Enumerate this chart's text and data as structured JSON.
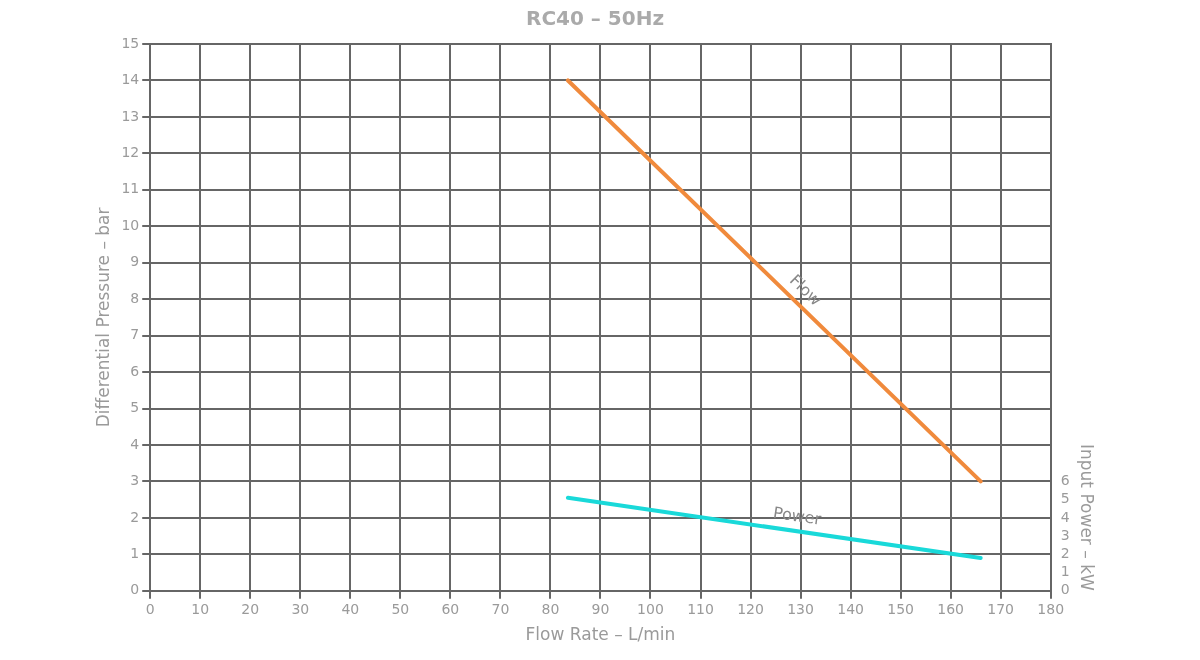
{
  "chart_data": {
    "type": "line",
    "title": "RC40 – 50Hz",
    "xlabel": "Flow Rate – L/min",
    "ylabel": "Differential Pressure – bar",
    "y2label": "Input Power – kW",
    "xlim": [
      0,
      180
    ],
    "xticks": [
      0,
      10,
      20,
      30,
      40,
      50,
      60,
      70,
      80,
      90,
      100,
      110,
      120,
      130,
      140,
      150,
      160,
      170,
      180
    ],
    "ylim": [
      0,
      15
    ],
    "yticks": [
      0,
      1,
      2,
      3,
      4,
      5,
      6,
      7,
      8,
      9,
      10,
      11,
      12,
      13,
      14,
      15
    ],
    "y2lim": [
      0,
      30
    ],
    "y2ticks": [
      0,
      1,
      2,
      3,
      4,
      5,
      6
    ],
    "x": [
      83.5,
      166
    ],
    "grid": true,
    "legend": false,
    "marker": "none",
    "line_style": "solid",
    "series": [
      {
        "name": "Flow",
        "color": "#f08a3c",
        "values": [
          14,
          3
        ]
      },
      {
        "name": "Power",
        "color": "#19d9d9",
        "axis": "y2",
        "values": [
          5.1,
          1.8
        ]
      }
    ]
  }
}
